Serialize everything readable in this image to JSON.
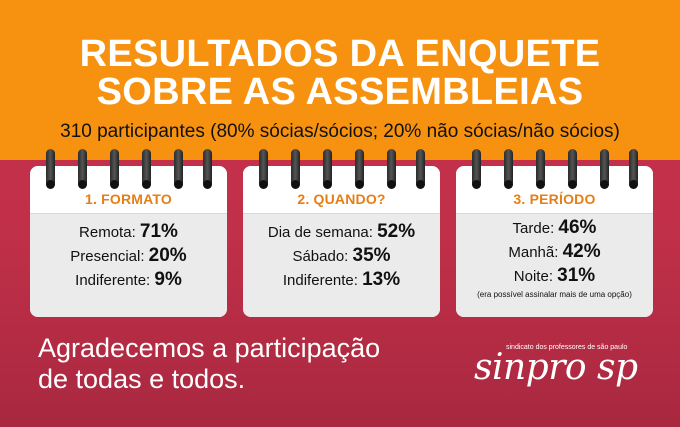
{
  "header": {
    "title_line1": "RESULTADOS DA ENQUETE",
    "title_line2": "SOBRE AS ASSEMBLEIAS",
    "subtitle": "310 participantes (80% sócias/sócios; 20% não sócias/não sócios)"
  },
  "cards": [
    {
      "title": "1. FORMATO",
      "rows": [
        {
          "label": "Remota: ",
          "value": "71%"
        },
        {
          "label": "Presencial: ",
          "value": "20%"
        },
        {
          "label": "Indiferente: ",
          "value": "9%"
        }
      ]
    },
    {
      "title": "2. QUANDO?",
      "rows": [
        {
          "label": "Dia de semana: ",
          "value": "52%"
        },
        {
          "label": "Sábado: ",
          "value": "35%"
        },
        {
          "label": "Indiferente: ",
          "value": "13%"
        }
      ]
    },
    {
      "title": "3. PERÍODO",
      "rows": [
        {
          "label": "Tarde: ",
          "value": "46%"
        },
        {
          "label": "Manhã: ",
          "value": "42%"
        },
        {
          "label": "Noite: ",
          "value": "31%"
        }
      ],
      "note": "(era possível assinalar mais de uma opção)"
    }
  ],
  "footer": {
    "thanks_line1": "Agradecemos a participação",
    "thanks_line2": "de todas e todos.",
    "logo_tagline": "sindicato dos professores de são paulo",
    "logo_name": "sinpro sp"
  },
  "colors": {
    "header_bg": "#f6920f",
    "body_bg": "#c8344c",
    "card_title": "#e67e16"
  }
}
